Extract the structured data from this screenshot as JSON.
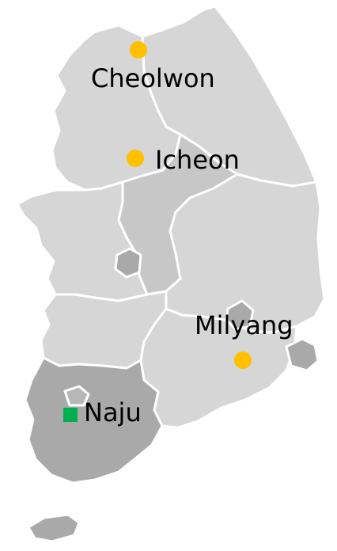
{
  "colors": {
    "background": "#ffffff",
    "land_light": "#d6d6d6",
    "land_mid": "#c7c7c7",
    "land_dark": "#a9a9a9",
    "border": "#ffffff",
    "circle_marker": "#ffc000",
    "square_marker": "#00b050",
    "label_text": "#000000"
  },
  "cities": [
    {
      "name": "Cheolwon",
      "marker": "circle"
    },
    {
      "name": "Icheon",
      "marker": "circle"
    },
    {
      "name": "Milyang",
      "marker": "circle"
    },
    {
      "name": "Naju",
      "marker": "square"
    }
  ]
}
